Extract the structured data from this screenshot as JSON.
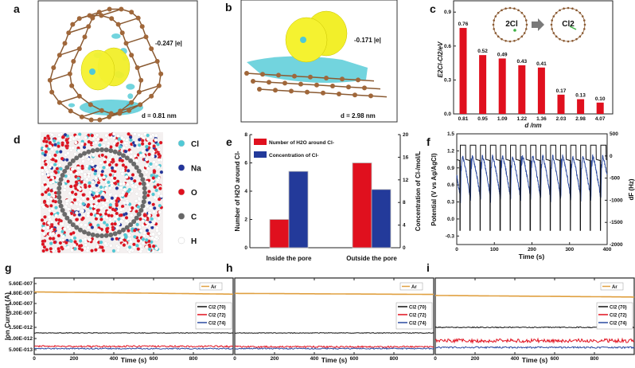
{
  "panels": {
    "a": {
      "label": "a",
      "charge": "-0.247 |e|",
      "distance": "d = 0.81 nm"
    },
    "b": {
      "label": "b",
      "charge": "-0.171 |e|",
      "distance": "d = 2.98 nm"
    },
    "d": {
      "label": "d",
      "legend": [
        {
          "name": "Cl",
          "color": "#4fc9d6"
        },
        {
          "name": "Na",
          "color": "#23349a"
        },
        {
          "name": "O",
          "color": "#e0101e"
        },
        {
          "name": "C",
          "color": "#666666"
        },
        {
          "name": "H",
          "color": "#ffffff"
        }
      ]
    },
    "c": {
      "label": "c",
      "inset_left": "2Cl",
      "inset_right": "Cl2"
    },
    "e": {
      "label": "e"
    },
    "f": {
      "label": "f"
    },
    "g": {
      "label": "g"
    },
    "h": {
      "label": "h"
    },
    "i": {
      "label": "i"
    }
  },
  "chart_data": [
    {
      "id": "c",
      "type": "bar",
      "categories": [
        "0.81",
        "0.95",
        "1.09",
        "1.22",
        "1.36",
        "2.03",
        "2.98",
        "4.07"
      ],
      "values": [
        0.76,
        0.52,
        0.49,
        0.43,
        0.41,
        0.17,
        0.13,
        0.1
      ],
      "data_labels": [
        "0.76",
        "0.52",
        "0.49",
        "0.43",
        "0.41",
        "0.17",
        "0.13",
        "0.10"
      ],
      "xlabel": "d /nm",
      "ylabel": "E2Cl-Cl2/eV",
      "ylim": [
        0,
        1.0
      ],
      "yticks": [
        "0.0",
        "0.3",
        "0.6",
        "0.9"
      ],
      "color": "#e0101e"
    },
    {
      "id": "e",
      "type": "bar",
      "categories": [
        "Inside the pore",
        "Outside the pore"
      ],
      "series": [
        {
          "name": "Number of H2O around Cl-",
          "axis": "left",
          "values": [
            2.0,
            6.0
          ],
          "color": "#e0101e"
        },
        {
          "name": "Concentration of Cl-",
          "axis": "right",
          "values": [
            13.5,
            10.3
          ],
          "color": "#233a9a"
        }
      ],
      "ylabel_left": "Number of H2O around Cl-",
      "ylabel_right": "Concentration of Cl-/mol/L",
      "ylim_left": [
        0,
        8
      ],
      "yticks_left": [
        "0",
        "2",
        "4",
        "6",
        "8"
      ],
      "ylim_right": [
        0,
        20
      ],
      "yticks_right": [
        "0",
        "4",
        "8",
        "12",
        "16",
        "20"
      ],
      "legend_position": "top-left"
    },
    {
      "id": "f",
      "type": "line",
      "xlabel": "Time (s)",
      "ylabel_left": "Potential (V vs Ag/AgCl)",
      "ylabel_right": "dF (Hz)",
      "xlim": [
        0,
        400
      ],
      "xticks": [
        "0",
        "100",
        "200",
        "300",
        "400"
      ],
      "ylim_left": [
        -0.45,
        1.5
      ],
      "yticks_left": [
        "-0.3",
        "0.0",
        "0.3",
        "0.6",
        "0.9",
        "1.2",
        "1.5"
      ],
      "ylim_right": [
        -2000,
        500
      ],
      "yticks_right": [
        "-2000",
        "-1500",
        "-1000",
        "-500",
        "0",
        "500"
      ],
      "cycles": 15,
      "series": [
        {
          "name": "Potential",
          "axis": "left",
          "color": "#111111",
          "high": 1.3,
          "plateau": 1.05,
          "low": -0.2
        },
        {
          "name": "dF",
          "axis": "right",
          "color": "#2b4aa0",
          "max": 0,
          "min": -1100
        }
      ]
    },
    {
      "id": "g",
      "type": "line",
      "xlabel": "Time (s)",
      "ylabel": "Ion Current (A)",
      "xlim": [
        0,
        1000
      ],
      "xticks": [
        "0",
        "200",
        "400",
        "600",
        "800"
      ],
      "yticks": [
        "5.00E-013",
        "1.00E-012",
        "1.50E-012",
        "3.20E-007",
        "4.00E-007",
        "4.80E-007",
        "5.60E-007"
      ],
      "series": [
        {
          "name": "Ar",
          "color": "#e0a040",
          "start": 4.9e-07,
          "end": 4.72e-07,
          "noise": 0
        },
        {
          "name": "Cl2 (70)",
          "color": "#111111",
          "start": 1.25e-12,
          "end": 1.25e-12,
          "noise": 0.1
        },
        {
          "name": "Cl2 (72)",
          "color": "#e0101e",
          "start": 6.5e-13,
          "end": 6.5e-13,
          "noise": 0.25
        },
        {
          "name": "Cl2 (74)",
          "color": "#2b4aa0",
          "start": 5.5e-13,
          "end": 5.5e-13,
          "noise": 0.2
        }
      ]
    },
    {
      "id": "h",
      "type": "line",
      "xlabel": "Time (s)",
      "xlim": [
        0,
        1000
      ],
      "xticks": [
        "0",
        "200",
        "400",
        "600",
        "800"
      ],
      "series": [
        {
          "name": "Ar",
          "color": "#e0a040",
          "start": 4.78e-07,
          "end": 4.7e-07,
          "noise": 0
        },
        {
          "name": "Cl2 (70)",
          "color": "#111111",
          "start": 1.25e-12,
          "end": 1.25e-12,
          "noise": 0.1
        },
        {
          "name": "Cl2 (72)",
          "color": "#e0101e",
          "start": 6.3e-13,
          "end": 6.3e-13,
          "noise": 0.25
        },
        {
          "name": "Cl2 (74)",
          "color": "#2b4aa0",
          "start": 5.5e-13,
          "end": 5.5e-13,
          "noise": 0.2
        }
      ]
    },
    {
      "id": "i",
      "type": "line",
      "xlabel": "Time (s)",
      "xlim": [
        0,
        1000
      ],
      "xticks": [
        "0",
        "200",
        "400",
        "600",
        "800"
      ],
      "series": [
        {
          "name": "Ar",
          "color": "#e0a040",
          "start": 4.62e-07,
          "end": 4.5e-07,
          "noise": 0
        },
        {
          "name": "Cl2 (70)",
          "color": "#111111",
          "start": 1.75e-12,
          "end": 1.7e-12,
          "noise": 0.15
        },
        {
          "name": "Cl2 (72)",
          "color": "#e0101e",
          "start": 9e-13,
          "end": 9e-13,
          "noise": 0.6
        },
        {
          "name": "Cl2 (74)",
          "color": "#2b4aa0",
          "start": 6e-13,
          "end": 6e-13,
          "noise": 0.25
        }
      ]
    }
  ]
}
